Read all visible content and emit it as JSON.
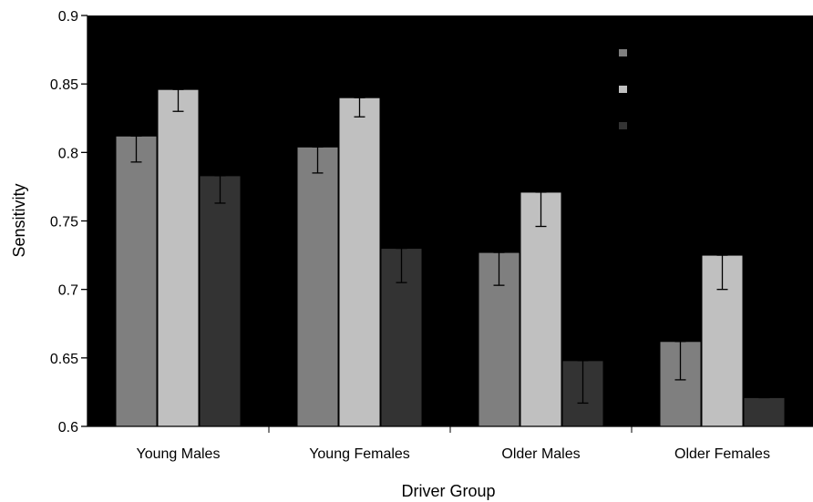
{
  "chart_data": {
    "type": "bar",
    "title": "",
    "xlabel": "Driver Group",
    "ylabel": "Sensitivity",
    "ylim": [
      0.6,
      0.9
    ],
    "yticks": [
      "0.6",
      "0.65",
      "0.7",
      "0.75",
      "0.8",
      "0.85",
      "0.9"
    ],
    "categories": [
      "Young Males",
      "Young Females",
      "Older Males",
      "Older Females"
    ],
    "series": [
      {
        "color": "#7f7f7f",
        "values": [
          0.812,
          0.804,
          0.727,
          0.662
        ],
        "errors": [
          0.019,
          0.019,
          0.024,
          0.028
        ]
      },
      {
        "color": "#c0c0c0",
        "values": [
          0.846,
          0.84,
          0.771,
          0.725
        ],
        "errors": [
          0.016,
          0.014,
          0.025,
          0.025
        ]
      },
      {
        "color": "#333333",
        "values": [
          0.783,
          0.73,
          0.648,
          0.621
        ],
        "errors": [
          0.02,
          0.025,
          0.031,
          0.0
        ]
      }
    ],
    "plot_background": "#000000",
    "legend": {
      "placement": "top-right"
    },
    "grid": false
  }
}
